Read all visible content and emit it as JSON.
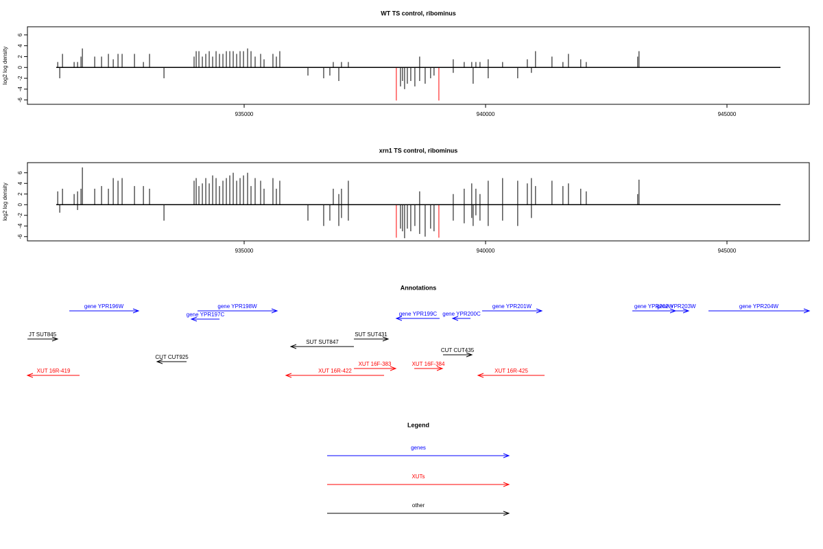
{
  "chart_data": [
    {
      "type": "spike",
      "title": "WT TS control, ribominus",
      "ylabel": "log2 log density",
      "xlim": [
        930511,
        946705
      ],
      "xticks": [
        935000,
        940000,
        945000
      ],
      "ylim": [
        -6.8,
        7.5
      ],
      "yticks": [
        -6,
        -4,
        -2,
        0,
        2,
        4,
        6
      ],
      "series": [
        {
          "color": "#000000",
          "x": [
            931138,
            931237,
            931478,
            931549,
            931620,
            931649,
            931904,
            932046,
            932188,
            932288,
            932387,
            932472,
            932728,
            932913,
            933040,
            933963,
            934006,
            934063,
            934134,
            934205,
            934276,
            934347,
            934418,
            934489,
            934560,
            934631,
            934702,
            934773,
            934844,
            934915,
            934986,
            935071,
            935142,
            935227,
            935341,
            935412,
            935596,
            935667,
            935738,
            938635,
            939331,
            939558,
            939714,
            939800,
            939885,
            940055,
            940353,
            940865,
            941035,
            941376,
            941603,
            941717,
            941972,
            942086,
            943151,
            943179,
            936846,
            937016,
            937158,
            931180,
            933339,
            936321,
            936647,
            936775,
            936960,
            938238,
            938280,
            938323,
            938380,
            938451,
            938536,
            938635,
            938749,
            938862,
            938933,
            939331,
            939743,
            940055,
            940666,
            940950
          ],
          "values": [
            1,
            2.5,
            1,
            1,
            2,
            3.5,
            2,
            2,
            2.5,
            1.5,
            2.5,
            2.5,
            2.5,
            1,
            2.5,
            2,
            3,
            3,
            2,
            2.5,
            3,
            2,
            3,
            2.5,
            2.5,
            3,
            3,
            3,
            2.5,
            3,
            3,
            3.5,
            3,
            2,
            2.5,
            1.5,
            2.5,
            2,
            3,
            2,
            1.5,
            1,
            1,
            1,
            1,
            1.5,
            1,
            1.5,
            3,
            2,
            1,
            2.5,
            1.5,
            1,
            2,
            3,
            1,
            1,
            1,
            -2,
            -2,
            -1.5,
            -2,
            -1.5,
            -2.5,
            -3.5,
            -2.5,
            -4,
            -3,
            -2.5,
            -3.5,
            -2.5,
            -3,
            -2,
            -1.5,
            -1,
            -3,
            -2,
            -2,
            -1
          ]
        },
        {
          "color": "#ff0000",
          "x": [
            938152,
            939033
          ],
          "values": [
            -6.1,
            -6.1
          ]
        }
      ]
    },
    {
      "type": "spike",
      "title": "xrn1 TS control, ribominus",
      "ylabel": "log2 log density",
      "xlim": [
        930511,
        946705
      ],
      "xticks": [
        935000,
        940000,
        945000
      ],
      "ylim": [
        -6.8,
        7.9
      ],
      "yticks": [
        -6,
        -4,
        -2,
        0,
        2,
        4,
        6
      ],
      "series": [
        {
          "color": "#000000",
          "x": [
            931138,
            931237,
            931478,
            931549,
            931620,
            931649,
            931904,
            932046,
            932188,
            932288,
            932387,
            932472,
            932728,
            932913,
            933040,
            933963,
            934006,
            934063,
            934134,
            934205,
            934276,
            934347,
            934418,
            934489,
            934560,
            934631,
            934702,
            934773,
            934844,
            934915,
            934986,
            935071,
            935142,
            935227,
            935341,
            935412,
            935596,
            935667,
            935738,
            936846,
            936960,
            937016,
            937158,
            938635,
            939331,
            939558,
            939714,
            939800,
            939885,
            940055,
            940353,
            940666,
            940865,
            940950,
            941035,
            941376,
            941603,
            941717,
            941972,
            942086,
            943151,
            943179,
            931180,
            931549,
            933339,
            936321,
            936647,
            936775,
            936960,
            937016,
            937158,
            938238,
            938280,
            938323,
            938380,
            938451,
            938536,
            938635,
            938749,
            938862,
            938933,
            939331,
            939558,
            939714,
            939743,
            939800,
            939885,
            940055,
            940353,
            940666,
            940950
          ],
          "values": [
            2.5,
            3,
            2,
            2.5,
            3,
            7,
            3,
            3.5,
            3,
            5,
            4.5,
            5,
            3.5,
            3.5,
            3,
            4.5,
            5,
            3.5,
            4,
            5,
            4,
            5.5,
            5,
            3.5,
            4.5,
            5,
            5.5,
            6,
            4.5,
            5,
            5.5,
            6,
            3.5,
            5,
            4.5,
            3,
            5,
            3,
            4.5,
            3,
            2,
            3,
            4.5,
            2.5,
            2,
            3,
            4,
            3,
            2,
            4.5,
            5,
            4.5,
            4,
            5,
            3.5,
            4.5,
            3.5,
            4,
            3,
            2.5,
            2,
            4.7,
            -1.5,
            -1,
            -3,
            -3,
            -4,
            -3,
            -4,
            -2.5,
            -3,
            -4.5,
            -5,
            -6.3,
            -4.5,
            -5,
            -4,
            -5.5,
            -6,
            -4.5,
            -5,
            -3,
            -3.5,
            -2.5,
            -4,
            -2,
            -3,
            -4,
            -3,
            -4,
            -2.5
          ]
        },
        {
          "color": "#ff0000",
          "x": [
            938152,
            939033
          ],
          "values": [
            -6.2,
            -6.2
          ]
        }
      ]
    }
  ],
  "annotations": {
    "title": "Annotations",
    "features": [
      {
        "label": "gene YPR196W",
        "from": 931378,
        "to": 932812,
        "color": "#0000ff"
      },
      {
        "label": "gene YPR197C",
        "from": 934489,
        "to": 933906,
        "color": "#0000ff"
      },
      {
        "label": "gene YPR198W",
        "from": 934034,
        "to": 935682,
        "color": "#0000ff"
      },
      {
        "label": "gene YPR199C",
        "from": 939048,
        "to": 938153,
        "color": "#0000ff"
      },
      {
        "label": "gene YPR200C",
        "from": 939688,
        "to": 939318,
        "color": "#0000ff"
      },
      {
        "label": "gene YPR201W",
        "from": 939929,
        "to": 941165,
        "color": "#0000ff"
      },
      {
        "label": "gene YPR202W",
        "from": 943040,
        "to": 943935,
        "color": "#0000ff"
      },
      {
        "label": "gene YPR203W",
        "from": 943693,
        "to": 944205,
        "color": "#0000ff"
      },
      {
        "label": "gene YPR204W",
        "from": 944617,
        "to": 946705,
        "color": "#0000ff"
      },
      {
        "label": "JT SUT845",
        "from": 930511,
        "to": 931135,
        "color": "#000000"
      },
      {
        "label": "SUT SUT847",
        "from": 937273,
        "to": 935966,
        "color": "#000000"
      },
      {
        "label": "SUT SUT431",
        "from": 937273,
        "to": 937983,
        "color": "#000000"
      },
      {
        "label": "CUT CUT925",
        "from": 933807,
        "to": 933196,
        "color": "#000000"
      },
      {
        "label": "CUT CUT435",
        "from": 939119,
        "to": 939716,
        "color": "#000000"
      },
      {
        "label": "XUT 16R-419",
        "from": 931591,
        "to": 930511,
        "color": "#ff0000"
      },
      {
        "label": "XUT 16R-422",
        "from": 937898,
        "to": 935866,
        "color": "#ff0000"
      },
      {
        "label": "XUT 16F-383",
        "from": 937273,
        "to": 938139,
        "color": "#ff0000"
      },
      {
        "label": "XUT 16F-384",
        "from": 938523,
        "to": 939105,
        "color": "#ff0000"
      },
      {
        "label": "XUT 16R-425",
        "from": 941222,
        "to": 939844,
        "color": "#ff0000"
      }
    ]
  },
  "legend": {
    "title": "Legend",
    "entries": [
      {
        "label": "genes",
        "color": "#0000ff"
      },
      {
        "label": "XUTs",
        "color": "#ff0000"
      },
      {
        "label": "other",
        "color": "#000000"
      }
    ]
  }
}
